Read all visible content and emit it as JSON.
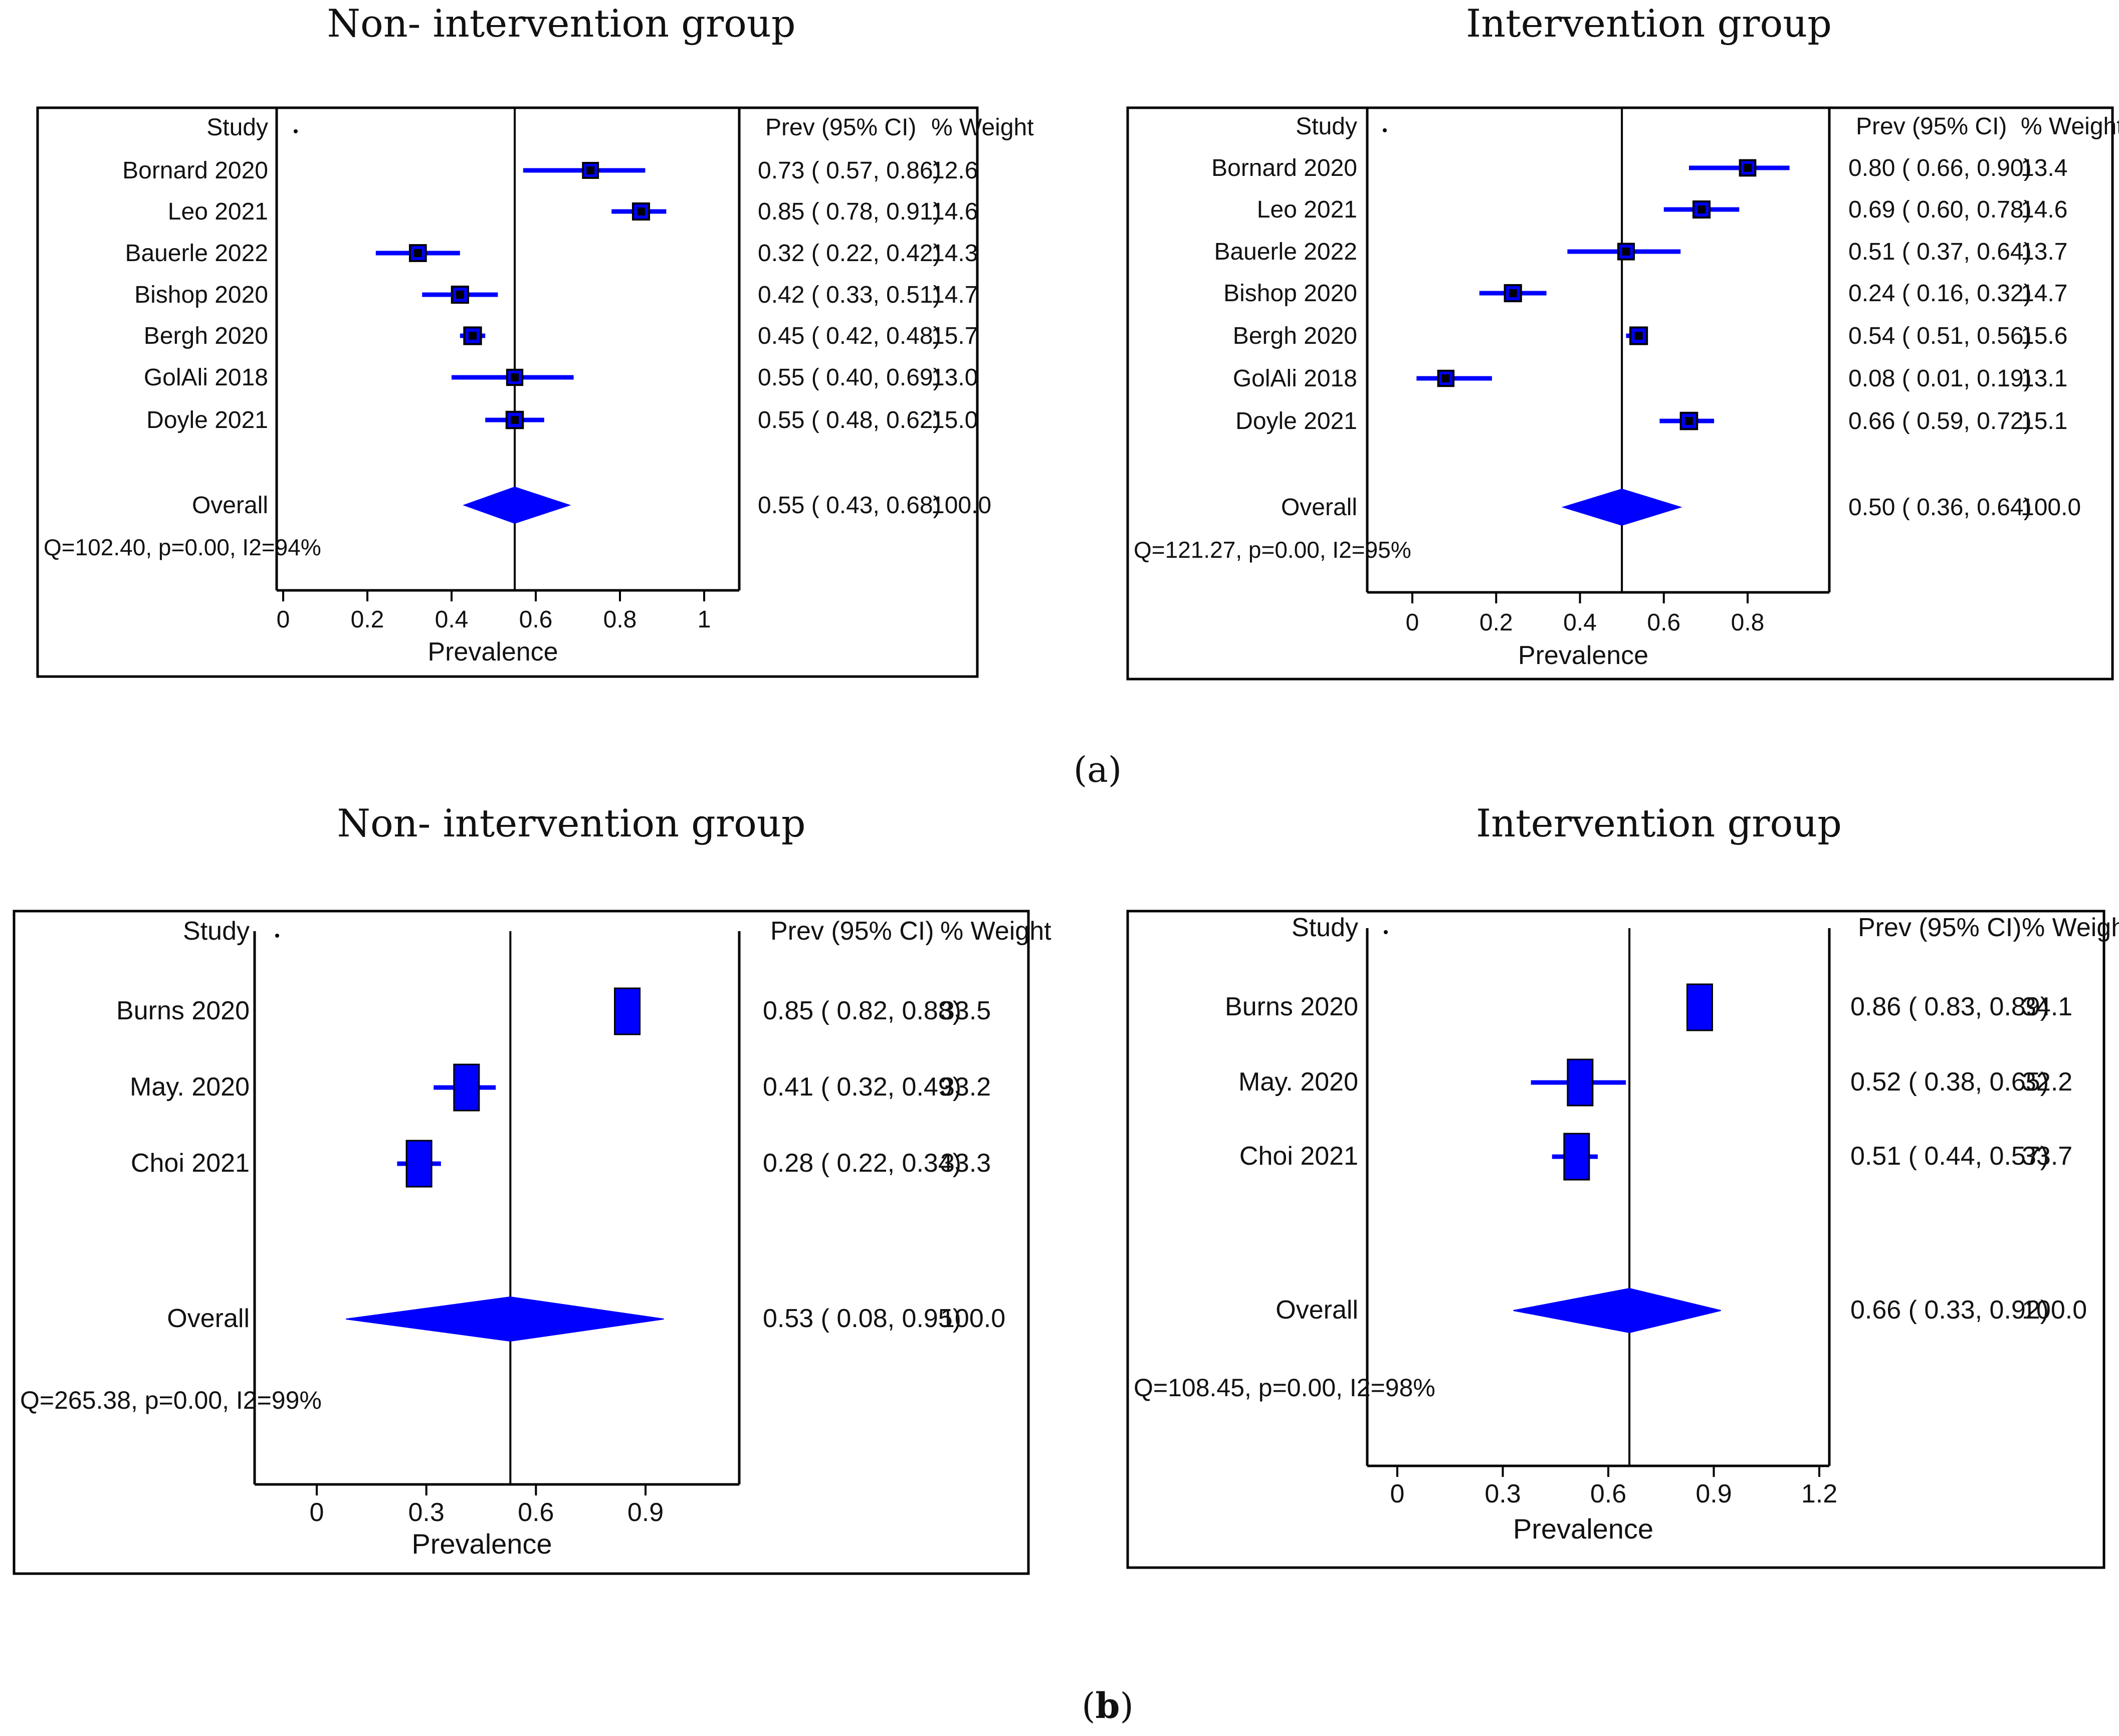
{
  "figure": {
    "panel_a_label": "(a)",
    "panel_b_prefix": "(",
    "panel_b_letter": "b",
    "panel_b_suffix": ")"
  },
  "chart_data": [
    {
      "type": "forest",
      "title": "Non- intervention group",
      "panel": "a",
      "header": {
        "study": "Study",
        "ci": "Prev (95% CI)",
        "weight": "% Weight"
      },
      "xlabel": "Prevalence",
      "xlim": [
        0,
        1.08
      ],
      "xticks": [
        0,
        0.2,
        0.4,
        0.6,
        0.8,
        1
      ],
      "xtick_labels": [
        "0",
        "0.2",
        "0.4",
        "0.6",
        "0.8",
        "1"
      ],
      "studies": [
        {
          "name": "Bornard 2020",
          "est": 0.73,
          "lo": 0.57,
          "hi": 0.86,
          "ci_text": "0.73  ( 0.57,  0.86)",
          "weight": "12.6"
        },
        {
          "name": "Leo 2021",
          "est": 0.85,
          "lo": 0.78,
          "hi": 0.91,
          "ci_text": "0.85  ( 0.78,  0.91)",
          "weight": "14.6"
        },
        {
          "name": "Bauerle 2022",
          "est": 0.32,
          "lo": 0.22,
          "hi": 0.42,
          "ci_text": "0.32  ( 0.22,  0.42)",
          "weight": "14.3"
        },
        {
          "name": "Bishop 2020",
          "est": 0.42,
          "lo": 0.33,
          "hi": 0.51,
          "ci_text": "0.42  ( 0.33,  0.51)",
          "weight": "14.7"
        },
        {
          "name": "Bergh 2020",
          "est": 0.45,
          "lo": 0.42,
          "hi": 0.48,
          "ci_text": "0.45  ( 0.42,  0.48)",
          "weight": "15.7"
        },
        {
          "name": "GolAli 2018",
          "est": 0.55,
          "lo": 0.4,
          "hi": 0.69,
          "ci_text": "0.55  ( 0.40,  0.69)",
          "weight": "13.0"
        },
        {
          "name": "Doyle 2021",
          "est": 0.55,
          "lo": 0.48,
          "hi": 0.62,
          "ci_text": "0.55  ( 0.48,  0.62)",
          "weight": "15.0"
        }
      ],
      "overall": {
        "name": "Overall",
        "est": 0.55,
        "lo": 0.43,
        "hi": 0.68,
        "ci_text": "0.55  ( 0.43,  0.68)",
        "weight": "100.0"
      },
      "heterogeneity": "Q=102.40, p=0.00, I2=94%"
    },
    {
      "type": "forest",
      "title": "Intervention group",
      "panel": "a",
      "header": {
        "study": "Study",
        "ci": "Prev (95% CI)",
        "weight": "% Weight"
      },
      "xlabel": "Prevalence",
      "xlim": [
        0,
        0.95
      ],
      "xticks": [
        0,
        0.2,
        0.4,
        0.6,
        0.8
      ],
      "xtick_labels": [
        "0",
        "0.2",
        "0.4",
        "0.6",
        "0.8"
      ],
      "studies": [
        {
          "name": "Bornard 2020",
          "est": 0.8,
          "lo": 0.66,
          "hi": 0.9,
          "ci_text": "0.80  ( 0.66,  0.90)",
          "weight": "13.4"
        },
        {
          "name": "Leo 2021",
          "est": 0.69,
          "lo": 0.6,
          "hi": 0.78,
          "ci_text": "0.69  ( 0.60,  0.78)",
          "weight": "14.6"
        },
        {
          "name": "Bauerle 2022",
          "est": 0.51,
          "lo": 0.37,
          "hi": 0.64,
          "ci_text": "0.51  ( 0.37,  0.64)",
          "weight": "13.7"
        },
        {
          "name": "Bishop 2020",
          "est": 0.24,
          "lo": 0.16,
          "hi": 0.32,
          "ci_text": "0.24  ( 0.16,  0.32)",
          "weight": "14.7"
        },
        {
          "name": "Bergh 2020",
          "est": 0.54,
          "lo": 0.51,
          "hi": 0.56,
          "ci_text": "0.54  ( 0.51,  0.56)",
          "weight": "15.6"
        },
        {
          "name": "GolAli 2018",
          "est": 0.08,
          "lo": 0.01,
          "hi": 0.19,
          "ci_text": "0.08  ( 0.01,  0.19)",
          "weight": "13.1"
        },
        {
          "name": "Doyle 2021",
          "est": 0.66,
          "lo": 0.59,
          "hi": 0.72,
          "ci_text": "0.66  ( 0.59,  0.72)",
          "weight": "15.1"
        }
      ],
      "overall": {
        "name": "Overall",
        "est": 0.5,
        "lo": 0.36,
        "hi": 0.64,
        "ci_text": "0.50  ( 0.36,  0.64)",
        "weight": "100.0"
      },
      "heterogeneity": "Q=121.27, p=0.00, I2=95%"
    },
    {
      "type": "forest",
      "title": "Non- intervention group",
      "panel": "b",
      "header": {
        "study": "Study",
        "ci": "Prev (95% CI)",
        "weight": "% Weight"
      },
      "xlabel": "Prevalence",
      "xlim": [
        -0.15,
        1.18
      ],
      "xticks": [
        0,
        0.3,
        0.6,
        0.9
      ],
      "xtick_labels": [
        "0",
        "0.3",
        "0.6",
        "0.9"
      ],
      "studies": [
        {
          "name": "Burns 2020",
          "est": 0.85,
          "lo": 0.82,
          "hi": 0.88,
          "ci_text": "0.85  ( 0.82,  0.88)",
          "weight": "33.5"
        },
        {
          "name": "May. 2020",
          "est": 0.41,
          "lo": 0.32,
          "hi": 0.49,
          "ci_text": "0.41  ( 0.32,  0.49)",
          "weight": "33.2"
        },
        {
          "name": "Choi 2021",
          "est": 0.28,
          "lo": 0.22,
          "hi": 0.34,
          "ci_text": "0.28  ( 0.22,  0.34)",
          "weight": "33.3"
        }
      ],
      "overall": {
        "name": "Overall",
        "est": 0.53,
        "lo": 0.08,
        "hi": 0.95,
        "ci_text": "0.53  ( 0.08,  0.95)",
        "weight": "100.0"
      },
      "heterogeneity": "Q=265.38, p=0.00, I2=99%"
    },
    {
      "type": "forest",
      "title": "Intervention group",
      "panel": "b",
      "header": {
        "study": "Study",
        "ci": "Prev (95% CI)",
        "weight": "% Weight"
      },
      "xlabel": "Prevalence",
      "xlim": [
        -0.1,
        1.26
      ],
      "xticks": [
        0,
        0.3,
        0.6,
        0.9,
        1.2
      ],
      "xtick_labels": [
        "0",
        "0.3",
        "0.6",
        "0.9",
        "1.2"
      ],
      "studies": [
        {
          "name": "Burns 2020",
          "est": 0.86,
          "lo": 0.83,
          "hi": 0.89,
          "ci_text": "0.86  ( 0.83,  0.89)",
          "weight": "34.1"
        },
        {
          "name": "May. 2020",
          "est": 0.52,
          "lo": 0.38,
          "hi": 0.65,
          "ci_text": "0.52  ( 0.38,  0.65)",
          "weight": "32.2"
        },
        {
          "name": "Choi 2021",
          "est": 0.51,
          "lo": 0.44,
          "hi": 0.57,
          "ci_text": "0.51  ( 0.44,  0.57)",
          "weight": "33.7"
        }
      ],
      "overall": {
        "name": "Overall",
        "est": 0.66,
        "lo": 0.33,
        "hi": 0.92,
        "ci_text": "0.66  ( 0.33,  0.92)",
        "weight": "100.0"
      },
      "heterogeneity": "Q=108.45, p=0.00, I2=98%"
    }
  ]
}
